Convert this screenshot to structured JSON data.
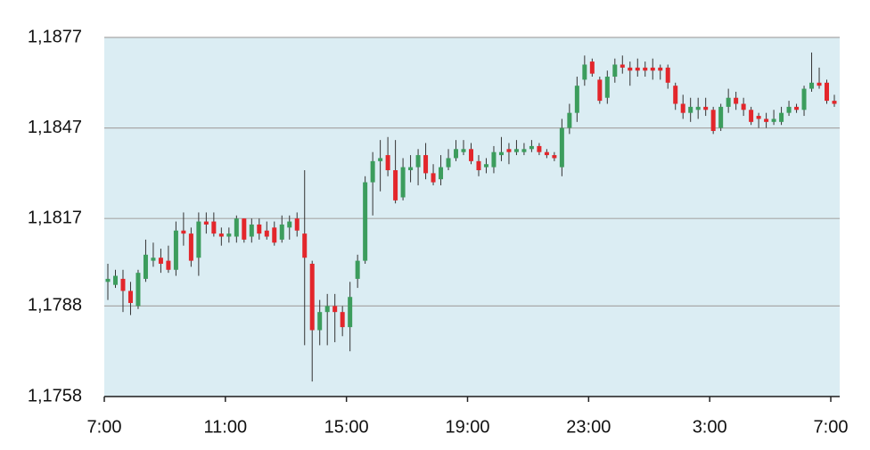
{
  "chart_data": {
    "type": "candlestick",
    "categories": [
      "7:00",
      null,
      null,
      null,
      null,
      null,
      null,
      null,
      null,
      null,
      null,
      null,
      null,
      null,
      null,
      null,
      "11:00",
      null,
      null,
      null,
      null,
      null,
      null,
      null,
      null,
      null,
      null,
      null,
      null,
      null,
      null,
      null,
      "15:00",
      null,
      null,
      null,
      null,
      null,
      null,
      null,
      null,
      null,
      null,
      null,
      null,
      null,
      null,
      null,
      "19:00",
      null,
      null,
      null,
      null,
      null,
      null,
      null,
      null,
      null,
      null,
      null,
      null,
      null,
      null,
      null,
      "23:00",
      null,
      null,
      null,
      null,
      null,
      null,
      null,
      null,
      null,
      null,
      null,
      null,
      null,
      null,
      null,
      "3:00",
      null,
      null,
      null,
      null,
      null,
      null,
      null,
      null,
      null,
      null,
      null,
      null,
      null,
      null,
      null,
      "7:00"
    ],
    "open": [
      1.1796,
      1.1795,
      1.1797,
      1.1793,
      1.1788,
      1.1797,
      1.1803,
      1.1804,
      1.1803,
      1.18,
      1.1813,
      1.1812,
      1.1804,
      1.1816,
      1.1816,
      1.1812,
      1.1811,
      1.1811,
      1.1817,
      1.1811,
      1.1815,
      1.1813,
      1.1814,
      1.181,
      1.1814,
      1.1817,
      1.1812,
      1.1802,
      1.178,
      1.1786,
      1.1788,
      1.1786,
      1.1781,
      1.1797,
      1.1803,
      1.1829,
      1.1836,
      1.1838,
      1.1833,
      1.1824,
      1.1833,
      1.1834,
      1.1838,
      1.1832,
      1.183,
      1.1834,
      1.1837,
      1.1839,
      1.184,
      1.1836,
      1.1834,
      1.1834,
      1.1838,
      1.184,
      1.1839,
      1.1839,
      1.184,
      1.1841,
      1.1839,
      1.1838,
      1.1834,
      1.1847,
      1.1852,
      1.1863,
      1.1869,
      1.1863,
      1.1857,
      1.1864,
      1.1868,
      1.1867,
      1.1867,
      1.1867,
      1.1867,
      1.1867,
      1.1867,
      1.1861,
      1.1855,
      1.1852,
      1.1853,
      1.1854,
      1.1853,
      1.1847,
      1.1854,
      1.1857,
      1.1855,
      1.1853,
      1.1851,
      1.185,
      1.1849,
      1.1849,
      1.1852,
      1.1854,
      1.1853,
      1.186,
      1.1862,
      1.1862,
      1.1856
    ],
    "high": [
      1.1802,
      1.18,
      1.18,
      1.1796,
      1.18,
      1.181,
      1.1809,
      1.1807,
      1.1808,
      1.1816,
      1.1819,
      1.1814,
      1.1819,
      1.1819,
      1.1819,
      1.1814,
      1.1814,
      1.1818,
      1.1817,
      1.1817,
      1.1817,
      1.1816,
      1.1816,
      1.1818,
      1.1818,
      1.1819,
      1.1833,
      1.1803,
      1.179,
      1.1792,
      1.1792,
      1.1788,
      1.1796,
      1.1805,
      1.1831,
      1.1839,
      1.1843,
      1.1844,
      1.1843,
      1.1837,
      1.1838,
      1.184,
      1.1842,
      1.1835,
      1.1838,
      1.184,
      1.1843,
      1.1843,
      1.1842,
      1.1838,
      1.1837,
      1.1841,
      1.1844,
      1.1842,
      1.1843,
      1.1842,
      1.1843,
      1.1842,
      1.184,
      1.1839,
      1.185,
      1.1855,
      1.1864,
      1.1871,
      1.187,
      1.1864,
      1.1866,
      1.187,
      1.1871,
      1.1869,
      1.187,
      1.1869,
      1.187,
      1.1868,
      1.1868,
      1.1862,
      1.1858,
      1.1857,
      1.1857,
      1.1857,
      1.1854,
      1.1855,
      1.186,
      1.1859,
      1.1857,
      1.1854,
      1.1852,
      1.1852,
      1.1853,
      1.1854,
      1.1856,
      1.1855,
      1.1861,
      1.1872,
      1.1867,
      1.1863,
      1.1858
    ],
    "low": [
      1.179,
      1.1794,
      1.1786,
      1.1785,
      1.1787,
      1.1796,
      1.1801,
      1.1799,
      1.1799,
      1.1798,
      1.1808,
      1.1801,
      1.1798,
      1.1812,
      1.1811,
      1.1808,
      1.1809,
      1.1809,
      1.1809,
      1.1809,
      1.181,
      1.181,
      1.1808,
      1.1809,
      1.181,
      1.1811,
      1.1775,
      1.1763,
      1.1775,
      1.1775,
      1.1776,
      1.1778,
      1.1773,
      1.1794,
      1.1802,
      1.1818,
      1.1826,
      1.1831,
      1.1822,
      1.1823,
      1.1829,
      1.1828,
      1.183,
      1.1828,
      1.1828,
      1.1833,
      1.1836,
      1.1838,
      1.1835,
      1.1831,
      1.1832,
      1.1832,
      1.1836,
      1.1835,
      1.1838,
      1.1838,
      1.1839,
      1.1838,
      1.1837,
      1.1836,
      1.1831,
      1.1845,
      1.1849,
      1.1861,
      1.1864,
      1.1855,
      1.1855,
      1.1862,
      1.1865,
      1.1861,
      1.1864,
      1.1864,
      1.1863,
      1.1863,
      1.186,
      1.1853,
      1.185,
      1.1849,
      1.185,
      1.1851,
      1.1845,
      1.1846,
      1.1852,
      1.1853,
      1.1851,
      1.1848,
      1.1847,
      1.1847,
      1.1848,
      1.1848,
      1.1851,
      1.1852,
      1.1851,
      1.1859,
      1.186,
      1.1855,
      1.1854
    ],
    "close": [
      1.1797,
      1.1798,
      1.1793,
      1.1789,
      1.1799,
      1.1805,
      1.1804,
      1.1802,
      1.18,
      1.1813,
      1.1812,
      1.1803,
      1.1816,
      1.1815,
      1.1812,
      1.1811,
      1.1812,
      1.1817,
      1.181,
      1.1815,
      1.1812,
      1.1811,
      1.1809,
      1.1815,
      1.1816,
      1.1813,
      1.1804,
      1.178,
      1.1786,
      1.1788,
      1.1786,
      1.1781,
      1.1791,
      1.1803,
      1.1829,
      1.1836,
      1.1837,
      1.1833,
      1.1823,
      1.1834,
      1.1834,
      1.1838,
      1.1832,
      1.1829,
      1.1834,
      1.1837,
      1.184,
      1.184,
      1.1836,
      1.1833,
      1.1835,
      1.1839,
      1.1839,
      1.1839,
      1.184,
      1.184,
      1.1841,
      1.1839,
      1.1838,
      1.1837,
      1.1847,
      1.1852,
      1.1861,
      1.1868,
      1.1865,
      1.1856,
      1.1864,
      1.1868,
      1.1867,
      1.1866,
      1.1866,
      1.1866,
      1.1866,
      1.1866,
      1.1862,
      1.1855,
      1.1852,
      1.1854,
      1.1854,
      1.1853,
      1.1846,
      1.1854,
      1.1857,
      1.1855,
      1.1853,
      1.1849,
      1.185,
      1.1849,
      1.185,
      1.1852,
      1.1854,
      1.1853,
      1.186,
      1.1862,
      1.1861,
      1.1856,
      1.1855
    ],
    "up_color": "#3c9d5d",
    "down_color": "#e3262b",
    "ylim": [
      1.1758,
      1.1877
    ],
    "yticks": [
      {
        "value": 1.1758,
        "label": "1,1758"
      },
      {
        "value": 1.1788,
        "label": "1,1788"
      },
      {
        "value": 1.1817,
        "label": "1,1817"
      },
      {
        "value": 1.1847,
        "label": "1,1847"
      },
      {
        "value": 1.1877,
        "label": "1,1877"
      }
    ],
    "grid": true
  }
}
